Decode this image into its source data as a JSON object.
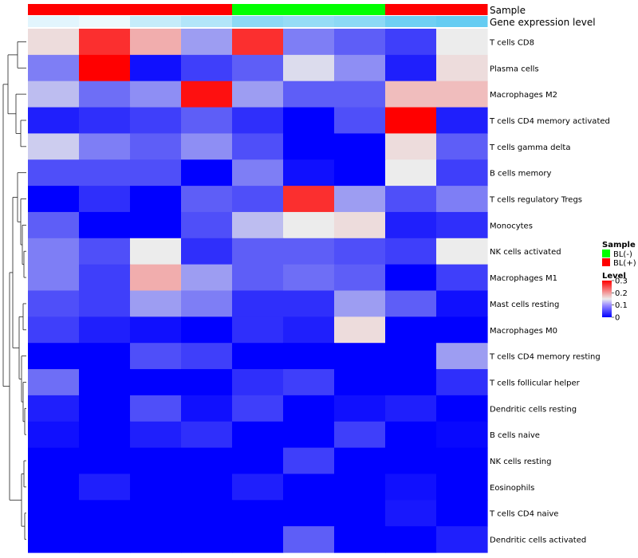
{
  "chart_data": {
    "type": "heatmap",
    "annotation_labels": [
      "Sample",
      "Gene expression level"
    ],
    "sample_groups": [
      "BL(+)",
      "BL(+)",
      "BL(+)",
      "BL(+)",
      "BL(-)",
      "BL(-)",
      "BL(-)",
      "BL(+)",
      "BL(+)"
    ],
    "expression_levels": [
      0.15,
      0.1,
      0.3,
      0.4,
      0.6,
      0.55,
      0.6,
      0.75,
      0.8
    ],
    "rows": [
      "T cells CD8",
      "Plasma cells",
      "Macrophages M2",
      "T cells CD4 memory activated",
      "T cells gamma delta",
      "B cells memory",
      "T cells regulatory  Tregs",
      "Monocytes",
      "NK cells activated",
      "Macrophages M1",
      "Mast cells resting",
      "Macrophages M0",
      "T cells CD4 memory resting",
      "T cells follicular helper",
      "Dendritic cells resting",
      "B cells naive",
      "NK cells resting",
      "Eosinophils",
      "T cells CD4 naive",
      "Dendritic cells activated"
    ],
    "values": [
      [
        0.16,
        0.27,
        0.19,
        0.1,
        0.27,
        0.08,
        0.06,
        0.04,
        0.15
      ],
      [
        0.08,
        0.31,
        0.01,
        0.04,
        0.06,
        0.14,
        0.09,
        0.02,
        0.16
      ],
      [
        0.12,
        0.07,
        0.09,
        0.29,
        0.1,
        0.06,
        0.06,
        0.18,
        0.18
      ],
      [
        0.02,
        0.03,
        0.04,
        0.06,
        0.03,
        0.0,
        0.05,
        0.31,
        0.02
      ],
      [
        0.13,
        0.08,
        0.06,
        0.09,
        0.05,
        0.0,
        0.0,
        0.16,
        0.06
      ],
      [
        0.05,
        0.05,
        0.05,
        0.0,
        0.08,
        0.01,
        0.0,
        0.15,
        0.04
      ],
      [
        0.0,
        0.03,
        0.0,
        0.06,
        0.05,
        0.27,
        0.1,
        0.05,
        0.08
      ],
      [
        0.06,
        0.0,
        0.0,
        0.05,
        0.12,
        0.15,
        0.16,
        0.02,
        0.03
      ],
      [
        0.08,
        0.05,
        0.15,
        0.03,
        0.06,
        0.06,
        0.05,
        0.04,
        0.15
      ],
      [
        0.08,
        0.04,
        0.19,
        0.1,
        0.06,
        0.07,
        0.06,
        0.0,
        0.04
      ],
      [
        0.05,
        0.04,
        0.1,
        0.08,
        0.03,
        0.03,
        0.1,
        0.06,
        0.01
      ],
      [
        0.04,
        0.02,
        0.01,
        0.0,
        0.03,
        0.02,
        0.16,
        0.0,
        0.0
      ],
      [
        0.0,
        0.0,
        0.05,
        0.04,
        0.0,
        0.0,
        0.0,
        0.0,
        0.1
      ],
      [
        0.07,
        0.0,
        0.0,
        0.0,
        0.03,
        0.04,
        0.0,
        0.0,
        0.03
      ],
      [
        0.02,
        0.0,
        0.05,
        0.01,
        0.04,
        0.0,
        0.01,
        0.02,
        0.0
      ],
      [
        0.01,
        0.0,
        0.02,
        0.03,
        0.0,
        0.0,
        0.04,
        0.0,
        0.005
      ],
      [
        0.0,
        0.0,
        0.0,
        0.0,
        0.0,
        0.04,
        0.0,
        0.0,
        0.0
      ],
      [
        0.0,
        0.02,
        0.0,
        0.0,
        0.02,
        0.0,
        0.0,
        0.01,
        0.0
      ],
      [
        0.0,
        0.0,
        0.0,
        0.0,
        0.0,
        0.0,
        0.0,
        0.015,
        0.0
      ],
      [
        0.0,
        0.0,
        0.0,
        0.0,
        0.0,
        0.06,
        0.0,
        0.0,
        0.02
      ]
    ],
    "value_range": [
      0,
      0.3
    ],
    "legend": {
      "sample_title": "Sample",
      "sample_entries": [
        {
          "label": "BL(-)",
          "color": "#00ff00"
        },
        {
          "label": "BL(+)",
          "color": "#ff0000"
        }
      ],
      "level_title": "Level",
      "level_ticks": [
        {
          "value": 0.3,
          "label": "0.3"
        },
        {
          "value": 0.2,
          "label": "0.2"
        },
        {
          "value": 0.1,
          "label": "0.1"
        },
        {
          "value": 0,
          "label": "0"
        }
      ]
    },
    "dendrogram": "row clustering tree",
    "colors": {
      "low": "#0000ff",
      "mid": "#ececec",
      "high": "#ff0000",
      "expr_low": "#ffffff",
      "expr_high": "#3fbfef"
    }
  }
}
